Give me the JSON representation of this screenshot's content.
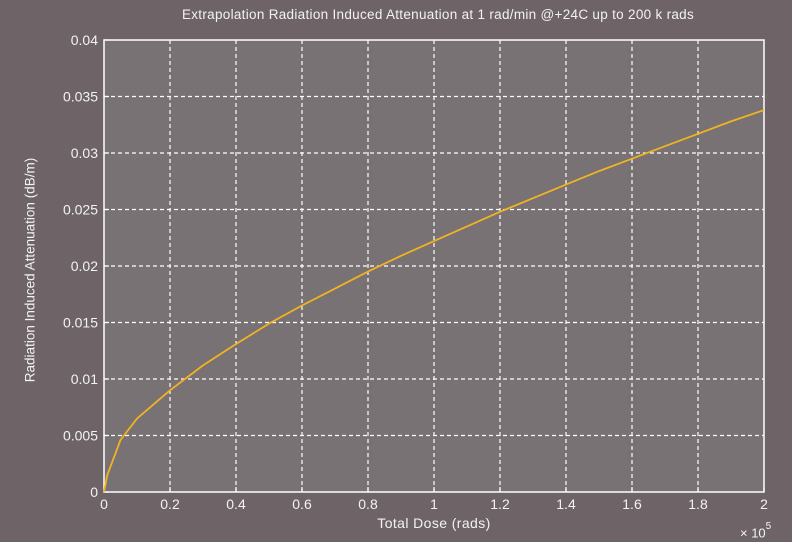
{
  "chart_data": {
    "type": "line",
    "title": "Extrapolation Radiation Induced Attenuation at 1 rad/min @+24C up to 200 k rads",
    "xlabel": "Total Dose (rads)",
    "ylabel": "Radiation Induced Attenuation (dB/m)",
    "x_multiplier_base": "× 10",
    "x_multiplier_exponent": "5",
    "xlim": [
      0,
      200000
    ],
    "ylim": [
      0,
      0.04
    ],
    "x_ticks": [
      0,
      20000,
      40000,
      60000,
      80000,
      100000,
      120000,
      140000,
      160000,
      180000,
      200000
    ],
    "x_tick_labels": [
      "0",
      "0.2",
      "0.4",
      "0.6",
      "0.8",
      "1",
      "1.2",
      "1.4",
      "1.6",
      "1.8",
      "2"
    ],
    "y_ticks": [
      0,
      0.005,
      0.01,
      0.015,
      0.02,
      0.025,
      0.03,
      0.035,
      0.04
    ],
    "y_tick_labels": [
      "0",
      "0.005",
      "0.01",
      "0.015",
      "0.02",
      "0.025",
      "0.03",
      "0.035",
      "0.04"
    ],
    "grid": true,
    "series": [
      {
        "color": "#f0b321",
        "x": [
          0,
          1000,
          5000,
          10000,
          20000,
          30000,
          40000,
          50000,
          60000,
          70000,
          80000,
          90000,
          100000,
          110000,
          120000,
          130000,
          140000,
          150000,
          160000,
          170000,
          180000,
          190000,
          200000
        ],
        "y": [
          0,
          0.0015,
          0.0046,
          0.0065,
          0.009,
          0.0112,
          0.0131,
          0.0149,
          0.0165,
          0.018,
          0.0195,
          0.0209,
          0.0222,
          0.0235,
          0.0248,
          0.026,
          0.0272,
          0.0284,
          0.0295,
          0.0306,
          0.0317,
          0.0328,
          0.0338
        ]
      }
    ]
  },
  "colors": {
    "background": "#6e6468",
    "plot_area": "#787274",
    "grid": "#ffffff",
    "axes": "#ffffff",
    "text": "#f2f2f2"
  }
}
